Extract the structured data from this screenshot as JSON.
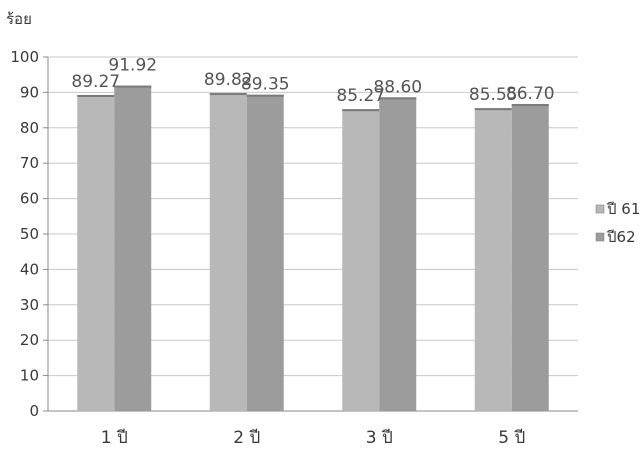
{
  "chart_data": {
    "type": "bar",
    "title": "",
    "xlabel": "",
    "ylabel": "ร้อย",
    "categories": [
      "1 ปี",
      "2 ปี",
      "3 ปี",
      "5 ปี"
    ],
    "series": [
      {
        "name": "ปี 61",
        "values": [
          89.27,
          89.82,
          85.27,
          85.55
        ],
        "color": "#b8b8b8"
      },
      {
        "name": "ปี62",
        "values": [
          91.92,
          89.35,
          88.6,
          86.7
        ],
        "color": "#9c9c9c"
      }
    ],
    "value_labels": [
      [
        "89.27",
        "89.82",
        "85.27",
        "85.55"
      ],
      [
        "91.92",
        "89.35",
        "88.60",
        "86.70"
      ]
    ],
    "ylim": [
      0,
      100
    ],
    "yticks": [
      0,
      10,
      20,
      30,
      40,
      50,
      60,
      70,
      80,
      90,
      100
    ],
    "grid": true,
    "legend": "right"
  }
}
